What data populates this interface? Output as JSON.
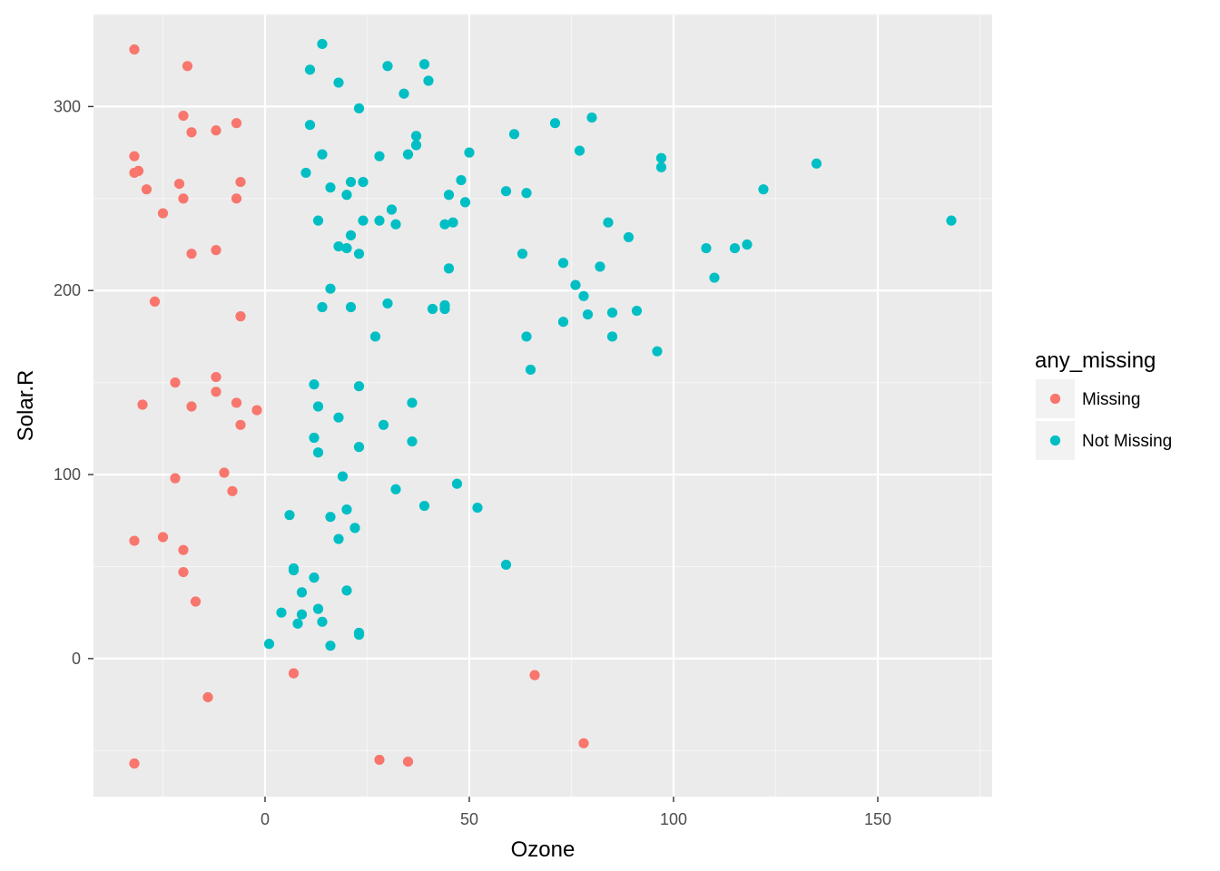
{
  "chart_data": {
    "type": "scatter",
    "title": "",
    "xlabel": "Ozone",
    "ylabel": "Solar.R",
    "xlim": [
      -42,
      178
    ],
    "ylim": [
      -75,
      350
    ],
    "x_ticks": [
      0,
      50,
      100,
      150
    ],
    "y_ticks": [
      0,
      100,
      200,
      300
    ],
    "grid": true,
    "legend": {
      "title": "any_missing",
      "position": "right"
    },
    "series": [
      {
        "name": "Missing",
        "color": "#F8766D",
        "points": [
          [
            -32,
            331
          ],
          [
            -19,
            322
          ],
          [
            -20,
            295
          ],
          [
            -7,
            291
          ],
          [
            -18,
            286
          ],
          [
            -12,
            287
          ],
          [
            -32,
            273
          ],
          [
            -31,
            265
          ],
          [
            -32,
            264
          ],
          [
            -29,
            255
          ],
          [
            -21,
            258
          ],
          [
            -6,
            259
          ],
          [
            -20,
            250
          ],
          [
            -7,
            250
          ],
          [
            -25,
            242
          ],
          [
            -12,
            222
          ],
          [
            -18,
            220
          ],
          [
            -27,
            194
          ],
          [
            -6,
            186
          ],
          [
            -22,
            150
          ],
          [
            -12,
            153
          ],
          [
            -12,
            145
          ],
          [
            -30,
            138
          ],
          [
            -18,
            137
          ],
          [
            -7,
            139
          ],
          [
            -2,
            135
          ],
          [
            -6,
            127
          ],
          [
            -10,
            101
          ],
          [
            -22,
            98
          ],
          [
            -8,
            91
          ],
          [
            -32,
            64
          ],
          [
            -25,
            66
          ],
          [
            -20,
            59
          ],
          [
            -20,
            47
          ],
          [
            -17,
            31
          ],
          [
            7,
            -8
          ],
          [
            66,
            -9
          ],
          [
            -14,
            -21
          ],
          [
            78,
            -46
          ],
          [
            -32,
            -57
          ],
          [
            28,
            -55
          ],
          [
            35,
            -56
          ]
        ]
      },
      {
        "name": "Not Missing",
        "color": "#00BFC4",
        "points": [
          [
            14,
            334
          ],
          [
            39,
            323
          ],
          [
            30,
            322
          ],
          [
            11,
            320
          ],
          [
            40,
            314
          ],
          [
            18,
            313
          ],
          [
            34,
            307
          ],
          [
            23,
            299
          ],
          [
            80,
            294
          ],
          [
            71,
            291
          ],
          [
            11,
            290
          ],
          [
            61,
            285
          ],
          [
            37,
            284
          ],
          [
            37,
            279
          ],
          [
            77,
            276
          ],
          [
            14,
            274
          ],
          [
            35,
            274
          ],
          [
            50,
            275
          ],
          [
            28,
            273
          ],
          [
            97,
            272
          ],
          [
            135,
            269
          ],
          [
            97,
            267
          ],
          [
            10,
            264
          ],
          [
            48,
            260
          ],
          [
            21,
            259
          ],
          [
            24,
            259
          ],
          [
            16,
            256
          ],
          [
            59,
            254
          ],
          [
            64,
            253
          ],
          [
            45,
            252
          ],
          [
            20,
            252
          ],
          [
            122,
            255
          ],
          [
            49,
            248
          ],
          [
            31,
            244
          ],
          [
            13,
            238
          ],
          [
            24,
            238
          ],
          [
            28,
            238
          ],
          [
            84,
            237
          ],
          [
            46,
            237
          ],
          [
            32,
            236
          ],
          [
            44,
            236
          ],
          [
            168,
            238
          ],
          [
            21,
            230
          ],
          [
            89,
            229
          ],
          [
            18,
            224
          ],
          [
            20,
            223
          ],
          [
            108,
            223
          ],
          [
            115,
            223
          ],
          [
            118,
            225
          ],
          [
            23,
            220
          ],
          [
            63,
            220
          ],
          [
            73,
            215
          ],
          [
            82,
            213
          ],
          [
            45,
            212
          ],
          [
            110,
            207
          ],
          [
            76,
            203
          ],
          [
            16,
            201
          ],
          [
            78,
            197
          ],
          [
            30,
            193
          ],
          [
            14,
            191
          ],
          [
            21,
            191
          ],
          [
            41,
            190
          ],
          [
            44,
            190
          ],
          [
            44,
            192
          ],
          [
            79,
            187
          ],
          [
            85,
            188
          ],
          [
            91,
            189
          ],
          [
            73,
            183
          ],
          [
            27,
            175
          ],
          [
            64,
            175
          ],
          [
            85,
            175
          ],
          [
            96,
            167
          ],
          [
            65,
            157
          ],
          [
            12,
            149
          ],
          [
            23,
            148
          ],
          [
            13,
            137
          ],
          [
            36,
            139
          ],
          [
            18,
            131
          ],
          [
            29,
            127
          ],
          [
            12,
            120
          ],
          [
            36,
            118
          ],
          [
            13,
            112
          ],
          [
            23,
            115
          ],
          [
            19,
            99
          ],
          [
            47,
            95
          ],
          [
            32,
            92
          ],
          [
            39,
            83
          ],
          [
            52,
            82
          ],
          [
            6,
            78
          ],
          [
            20,
            81
          ],
          [
            16,
            77
          ],
          [
            22,
            71
          ],
          [
            18,
            65
          ],
          [
            59,
            51
          ],
          [
            7,
            49
          ],
          [
            7,
            48
          ],
          [
            12,
            44
          ],
          [
            9,
            36
          ],
          [
            20,
            37
          ],
          [
            13,
            27
          ],
          [
            4,
            25
          ],
          [
            9,
            24
          ],
          [
            8,
            19
          ],
          [
            14,
            20
          ],
          [
            23,
            14
          ],
          [
            23,
            13
          ],
          [
            1,
            8
          ],
          [
            16,
            7
          ]
        ]
      }
    ]
  }
}
